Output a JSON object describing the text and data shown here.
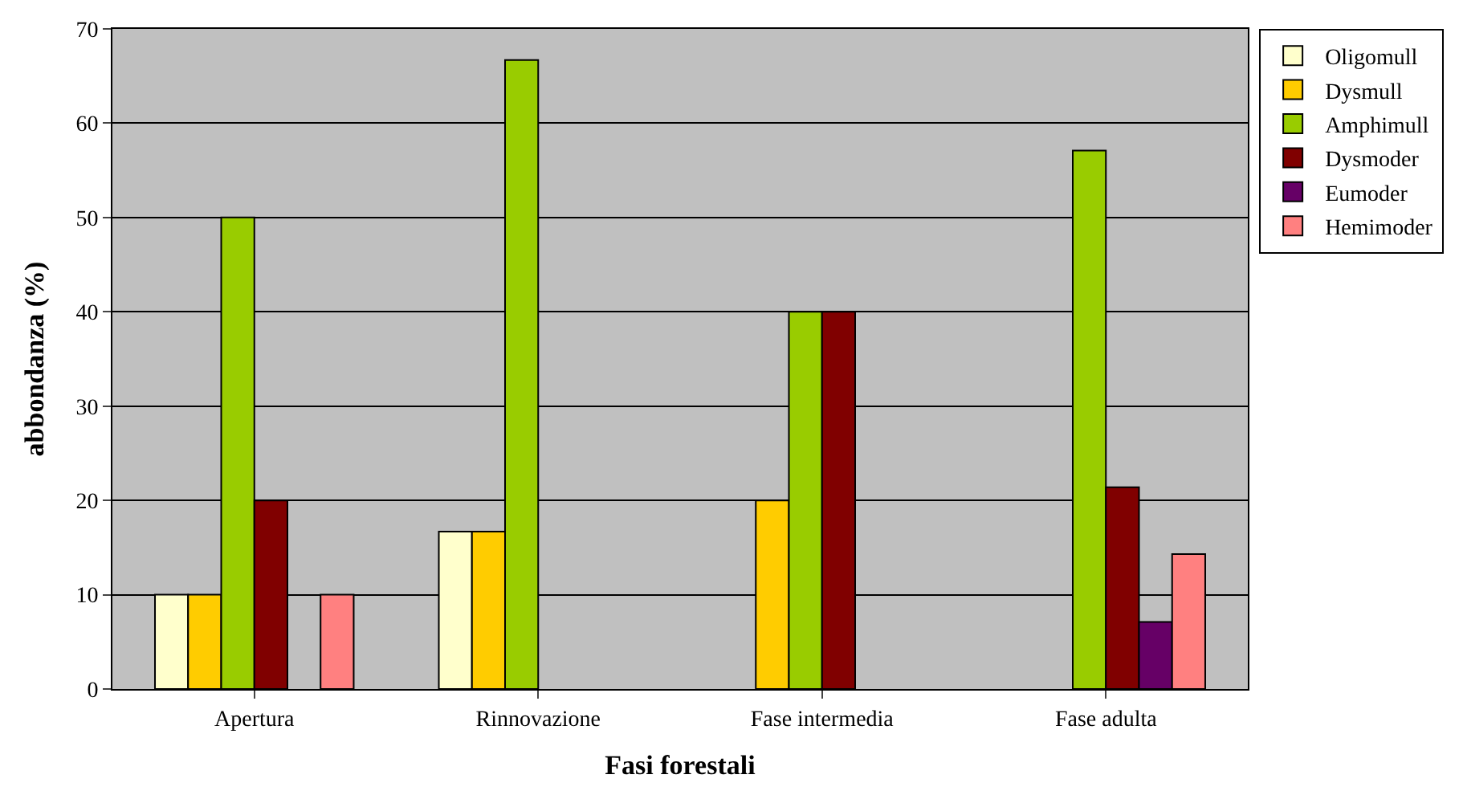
{
  "chart_data": {
    "type": "bar",
    "xlabel": "Fasi forestali",
    "ylabel": "abbondanza (%)",
    "categories": [
      "Apertura",
      "Rinnovazione",
      "Fase intermedia",
      "Fase adulta"
    ],
    "series": [
      {
        "name": "Oligomull",
        "color": "#ffffcc",
        "values": [
          10,
          16.7,
          null,
          null
        ]
      },
      {
        "name": "Dysmull",
        "color": "#ffcc00",
        "values": [
          10,
          16.7,
          20,
          null
        ]
      },
      {
        "name": "Amphimull",
        "color": "#99cc00",
        "values": [
          50,
          66.7,
          40,
          57.1
        ]
      },
      {
        "name": "Dysmoder",
        "color": "#800000",
        "values": [
          20,
          null,
          40,
          21.4
        ]
      },
      {
        "name": "Eumoder",
        "color": "#660066",
        "values": [
          null,
          null,
          null,
          7.1
        ]
      },
      {
        "name": "Hemimoder",
        "color": "#ff8080",
        "values": [
          10,
          null,
          null,
          14.3
        ]
      }
    ],
    "ylim": [
      0,
      70
    ],
    "yticks": [
      0,
      10,
      20,
      30,
      40,
      50,
      60,
      70
    ],
    "grid": "y",
    "legend": "top right"
  }
}
